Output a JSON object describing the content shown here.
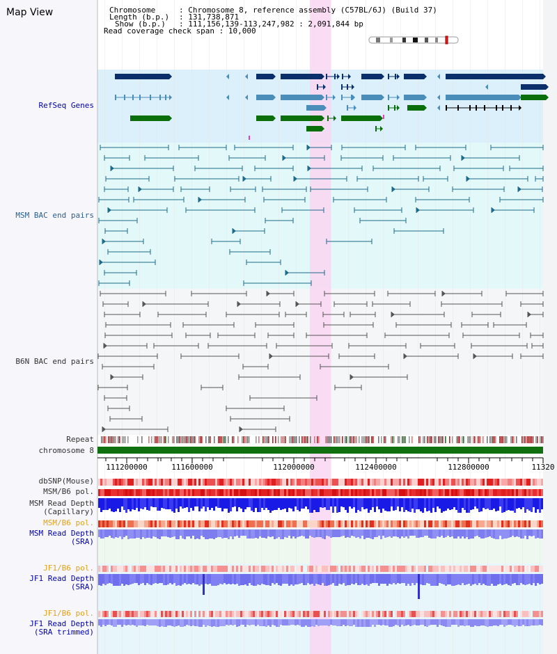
{
  "title": "Map View",
  "info": {
    "chromosome_label": "Chromosome",
    "chromosome_value": "Chromosome 8, reference assembly (C57BL/6J) (Build 37)",
    "length_label": "Length (b.p.)",
    "length_value": "131,738,871",
    "show_label": "Show (b.p.)",
    "show_value": "111,156,139-113,247,982 : 2,091,844 bp",
    "span_label": "Read coverage check span",
    "span_value": "10,000"
  },
  "tracks": {
    "refseq": "RefSeq Genes",
    "msm_bac": "MSM BAC end pairs",
    "b6n_bac": "B6N BAC end pairs",
    "repeat": "Repeat",
    "chromosome": "chromosome 8",
    "dbsnp": "dbSNP(Mouse)",
    "msm_b6_pol": "MSM/B6 pol.",
    "msm_read_cap_1": "MSM Read Depth",
    "msm_read_cap_2": "(Capillary)",
    "msm_b6_pol2": "MSM/B6 pol.",
    "msm_read_sra_1": "MSM Read Depth",
    "msm_read_sra_2": "(SRA)",
    "jf1_b6_pol": "JF1/B6 pol.",
    "jf1_read_sra_1": "JF1 Read Depth",
    "jf1_read_sra_2": "(SRA)",
    "jf1_b6_pol2": "JF1/B6 pol.",
    "jf1_read_trim_1": "JF1 Read Depth",
    "jf1_read_trim_2": "(SRA trimmed)"
  },
  "axis": {
    "ticks": [
      "111200000",
      "111600000",
      "112000000",
      "112400000",
      "112800000",
      "11320"
    ]
  },
  "colors": {
    "highlight": "#f9d6f2",
    "refseq_bg": "#dbf0fb",
    "msm_bg": "#e3f8f8",
    "b6n_bg": "#f4f6f8",
    "gene_navy": "#0b2f6b",
    "gene_steel": "#4a8db8",
    "gene_green": "#0a6e0a",
    "bac_msm": "#1e6a8a",
    "bac_b6n": "#555555",
    "chromosome_bar": "#107010",
    "depth_blue": "#1a1ae6",
    "depth_light": "#7d7df0",
    "pol_red": "#e83030",
    "label_orange": "#e0a020"
  }
}
